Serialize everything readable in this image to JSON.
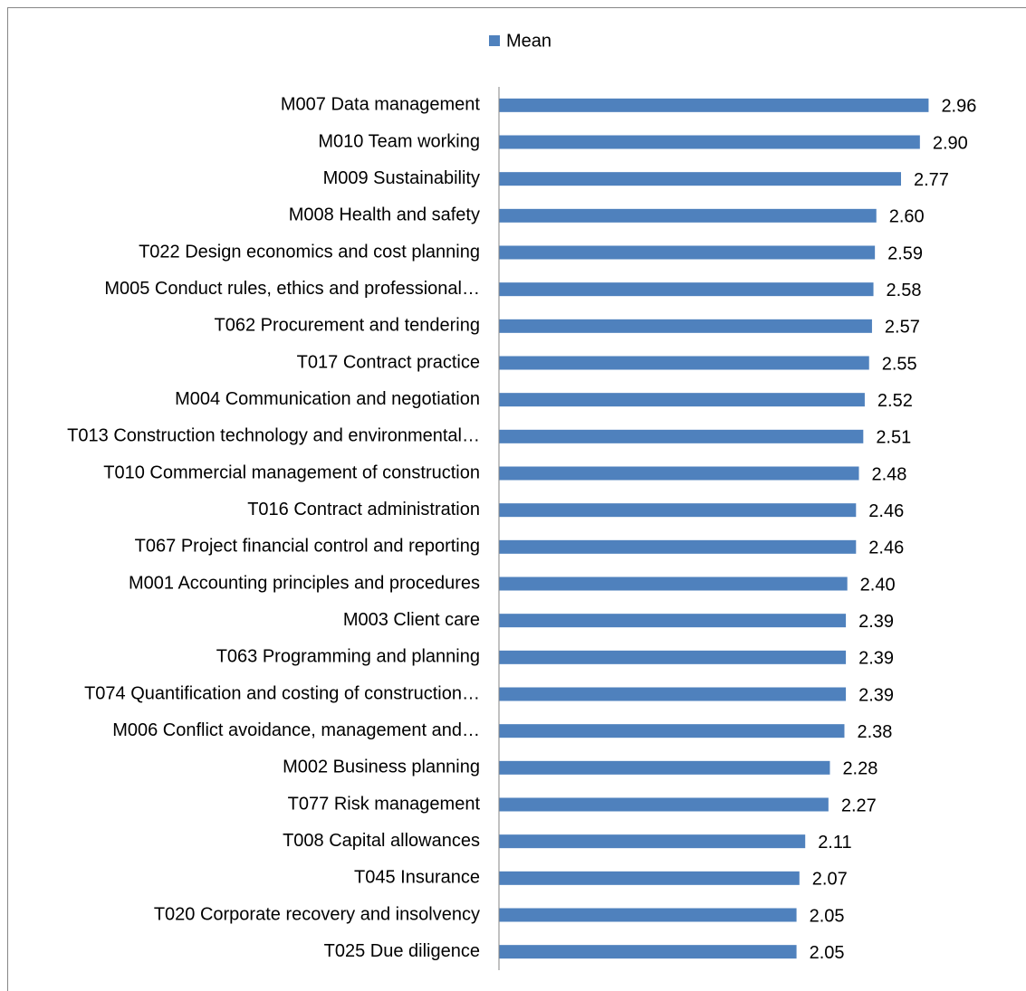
{
  "chart_data": {
    "type": "barh",
    "categories": [
      "M007 Data management",
      "M010 Team working",
      "M009 Sustainability",
      "M008 Health and safety",
      "T022 Design economics and cost planning",
      "M005 Conduct rules, ethics and professional…",
      "T062 Procurement and tendering",
      "T017 Contract practice",
      "M004 Communication and negotiation",
      "T013 Construction technology and environmental…",
      "T010 Commercial management of construction",
      "T016 Contract administration",
      "T067 Project financial control and reporting",
      "M001 Accounting principles and procedures",
      "M003 Client care",
      "T063 Programming and planning",
      "T074 Quantification and costing of construction…",
      "M006 Conflict avoidance, management and…",
      "M002 Business planning",
      "T077 Risk management",
      "T008 Capital allowances",
      "T045 Insurance",
      "T020 Corporate recovery and insolvency",
      "T025 Due diligence"
    ],
    "series": [
      {
        "name": "Mean",
        "color": "#4f81bd",
        "values": [
          2.96,
          2.9,
          2.77,
          2.6,
          2.59,
          2.58,
          2.57,
          2.55,
          2.52,
          2.51,
          2.48,
          2.46,
          2.46,
          2.4,
          2.39,
          2.39,
          2.39,
          2.38,
          2.28,
          2.27,
          2.11,
          2.07,
          2.05,
          2.05
        ],
        "value_labels": [
          "2.96",
          "2.90",
          "2.77",
          "2.60",
          "2.59",
          "2.58",
          "2.57",
          "2.55",
          "2.52",
          "2.51",
          "2.48",
          "2.46",
          "2.46",
          "2.40",
          "2.39",
          "2.39",
          "2.39",
          "2.38",
          "2.28",
          "2.27",
          "2.11",
          "2.07",
          "2.05",
          "2.05"
        ]
      }
    ],
    "xlim": [
      0,
      3.5
    ],
    "legend": "top"
  }
}
